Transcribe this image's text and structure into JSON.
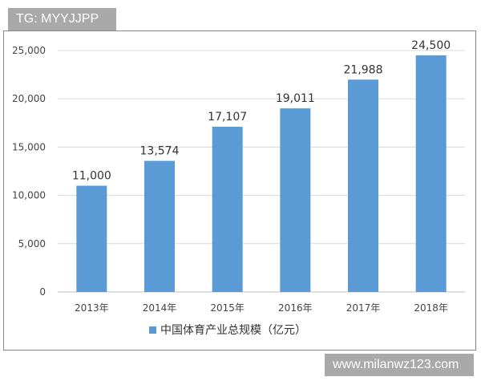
{
  "watermarks": {
    "top_left": "TG: MYYJJPP",
    "bottom_right": "www.milanwz123.com"
  },
  "chart_data": {
    "type": "bar",
    "categories": [
      "2013年",
      "2014年",
      "2015年",
      "2016年",
      "2017年",
      "2018年"
    ],
    "series": [
      {
        "name": "中国体育产业总规模（亿元）",
        "values": [
          11000,
          13574,
          17107,
          19011,
          21988,
          24500
        ],
        "color": "#5b9bd5"
      }
    ],
    "data_labels": [
      "11,000",
      "13,574",
      "17,107",
      "19,011",
      "21,988",
      "24,500"
    ],
    "yticks": [
      "0",
      "5,000",
      "10,000",
      "15,000",
      "20,000",
      "25,000"
    ],
    "ylim": [
      0,
      25000
    ],
    "grid": true,
    "legend": "bottom"
  }
}
